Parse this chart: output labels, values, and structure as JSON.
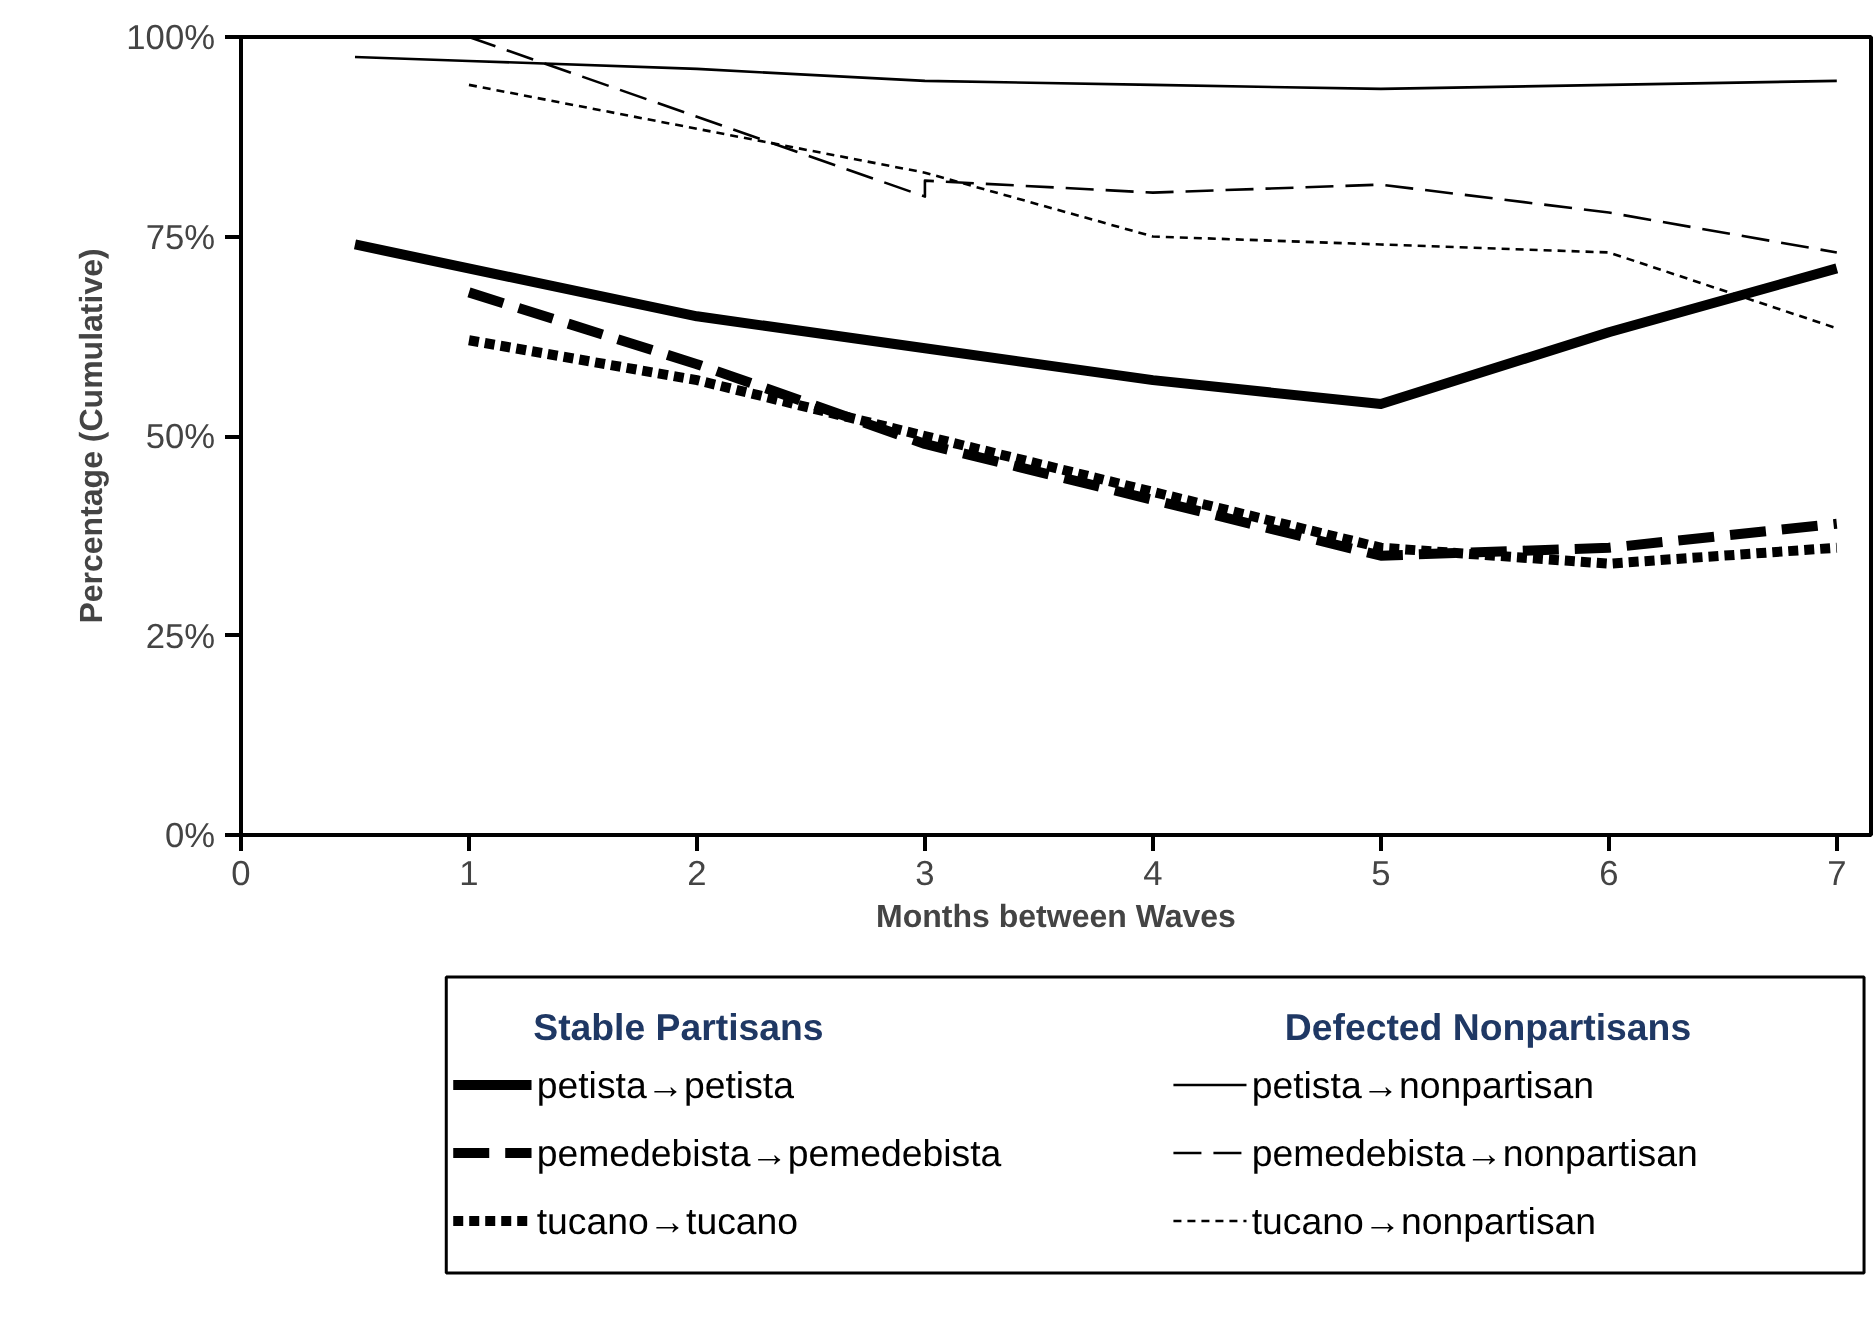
{
  "chart_data": {
    "type": "line",
    "xlabel": "Months between Waves",
    "ylabel": "Percentage (Cumulative)",
    "xlim": [
      0,
      7.15
    ],
    "ylim": [
      0,
      100
    ],
    "xticks": [
      0,
      1,
      2,
      3,
      4,
      5,
      6,
      7
    ],
    "yticks": [
      {
        "value": 0,
        "label": "0%"
      },
      {
        "value": 25,
        "label": "25%"
      },
      {
        "value": 50,
        "label": "50%"
      },
      {
        "value": 75,
        "label": "75%"
      },
      {
        "value": 100,
        "label": "100%"
      }
    ],
    "grid": false,
    "legend": "bottom",
    "marker": "none",
    "annotations": [
      "Stable Partisans",
      "Defected Nonpartisans"
    ],
    "series": [
      {
        "name": "petista→petista",
        "color": "#000000",
        "line_style": "solid",
        "x": [
          0.5,
          2,
          3,
          4,
          5,
          6,
          7
        ],
        "values": [
          74,
          65,
          61,
          57,
          54,
          63,
          71
        ]
      },
      {
        "name": "pemedebista→pemedebista",
        "color": "#000000",
        "line_style": "dashed",
        "x": [
          1,
          2,
          3,
          4,
          5,
          6,
          7
        ],
        "values": [
          68,
          59,
          49,
          42,
          35,
          36,
          39
        ]
      },
      {
        "name": "tucano→tucano",
        "color": "#000000",
        "line_style": "dotted",
        "x": [
          1,
          2,
          3,
          4,
          5,
          6,
          7
        ],
        "values": [
          62,
          57,
          50,
          43,
          36,
          34,
          36
        ]
      },
      {
        "name": "petista→nonpartisan",
        "color": "#000000",
        "line_style": "solid",
        "x": [
          0.5,
          1,
          2,
          3,
          4,
          5,
          6,
          7
        ],
        "values": [
          97.5,
          97,
          96,
          94.5,
          94,
          93.5,
          94,
          94.5
        ]
      },
      {
        "name": "pemedebista→nonpartisan",
        "color": "#000000",
        "line_style": "dashed",
        "x": [
          1,
          2,
          3,
          3,
          4,
          5,
          6,
          7
        ],
        "values": [
          100,
          90,
          80,
          82,
          80.5,
          81.5,
          78,
          73
        ]
      },
      {
        "name": "tucano→nonpartisan",
        "color": "#000000",
        "line_style": "dotted",
        "x": [
          1,
          2,
          3,
          4,
          5,
          6,
          7
        ],
        "values": [
          94,
          88.5,
          83,
          75,
          74,
          73,
          63.5
        ]
      }
    ]
  }
}
